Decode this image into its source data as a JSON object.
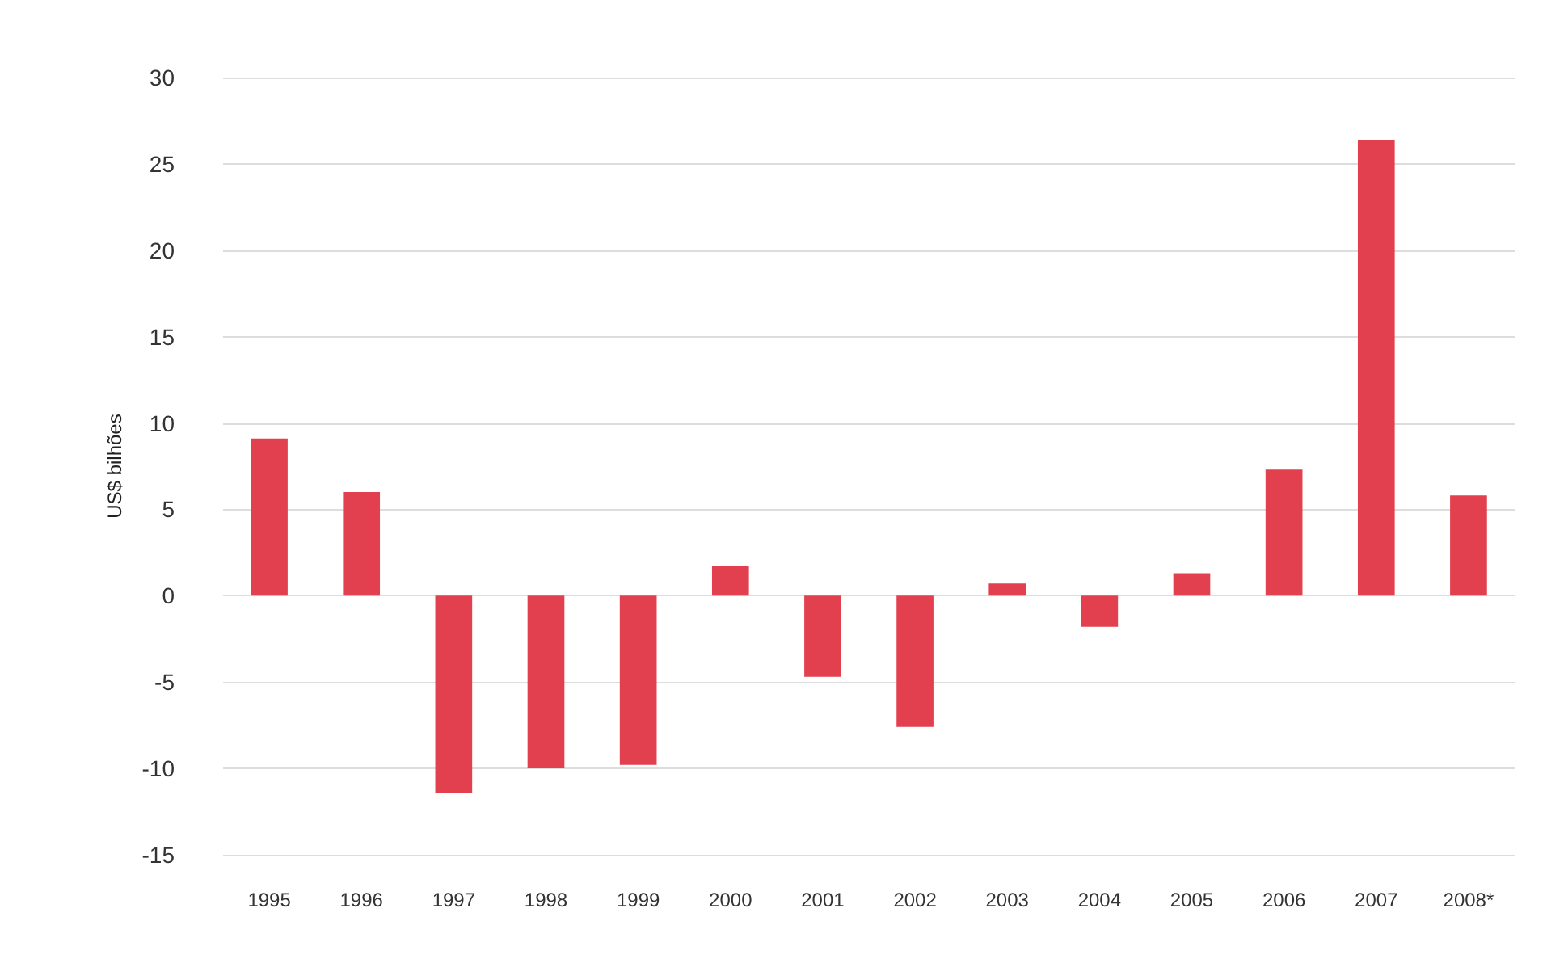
{
  "chart_data": {
    "type": "bar",
    "ylabel": "US$ bilhões",
    "categories": [
      "1995",
      "1996",
      "1997",
      "1998",
      "1999",
      "2000",
      "2001",
      "2002",
      "2003",
      "2004",
      "2005",
      "2006",
      "2007",
      "2008*"
    ],
    "values": [
      9.1,
      6.0,
      -11.4,
      -10.0,
      -9.8,
      1.7,
      -4.7,
      -7.6,
      0.7,
      -1.8,
      1.3,
      7.3,
      26.4,
      5.8
    ],
    "color": "#e2404e",
    "ylim": [
      -15,
      30
    ],
    "yticks": [
      -15,
      -10,
      -5,
      0,
      5,
      10,
      15,
      20,
      25,
      30
    ],
    "grid": "y"
  }
}
